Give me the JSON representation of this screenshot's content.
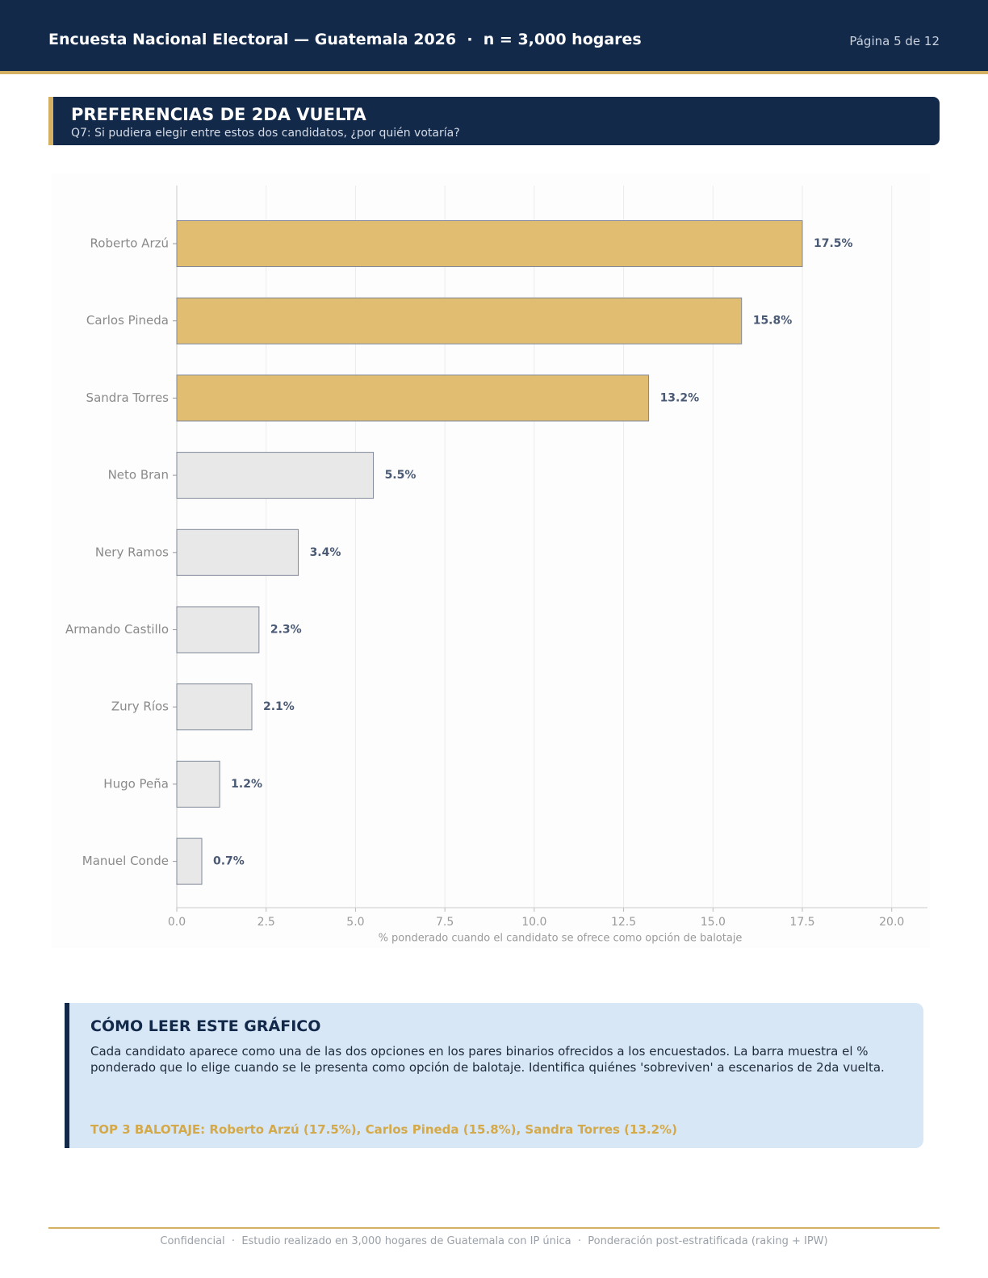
{
  "header": {
    "title": "Encuesta Nacional Electoral — Guatemala 2026  ·  n = 3,000 hogares",
    "page": "Página 5 de 12"
  },
  "section": {
    "title": "PREFERENCIAS DE 2DA VUELTA",
    "subtitle": "Q7: Si pudiera elegir entre estos dos candidatos, ¿por quién votaría?"
  },
  "chart_data": {
    "type": "bar",
    "orientation": "horizontal",
    "categories": [
      "Roberto Arzú",
      "Carlos Pineda",
      "Sandra Torres",
      "Neto Bran",
      "Nery Ramos",
      "Armando Castillo",
      "Zury Ríos",
      "Hugo Peña",
      "Manuel Conde"
    ],
    "values": [
      17.5,
      15.8,
      13.2,
      5.5,
      3.4,
      2.3,
      2.1,
      1.2,
      0.7
    ],
    "value_labels": [
      "17.5%",
      "15.8%",
      "13.2%",
      "5.5%",
      "3.4%",
      "2.3%",
      "2.1%",
      "1.2%",
      "0.7%"
    ],
    "colors": [
      "#e0bd70",
      "#e0bd70",
      "#e0bd70",
      "#e8e8e8",
      "#e8e8e8",
      "#e8e8e8",
      "#e8e8e8",
      "#e8e8e8",
      "#e8e8e8"
    ],
    "x_label": "% ponderado cuando el candidato se ofrece como opción de balotaje",
    "xlim": [
      0,
      21
    ],
    "xticks": [
      {
        "value": 0,
        "label": "0.0"
      },
      2.5,
      {
        "value": 5,
        "label": "5.0"
      },
      7.5,
      {
        "value": 10,
        "label": "10.0"
      },
      12.5,
      {
        "value": 15,
        "label": "15.0"
      },
      17.5,
      {
        "value": 20,
        "label": "20.0"
      }
    ],
    "grid": true
  },
  "note": {
    "title": "CÓMO LEER ESTE GRÁFICO",
    "body": "Cada candidato aparece como una de las dos opciones en los pares binarios ofrecidos a los encuestados. La barra muestra el % ponderado que lo elige cuando se le presenta como opción de balotaje. Identifica quiénes 'sobreviven' a escenarios de 2da vuelta.",
    "highlight": "TOP 3 BALOTAJE: Roberto Arzú (17.5%), Carlos Pineda (15.8%), Sandra Torres (13.2%)"
  },
  "footer": "Confidencial  ·  Estudio realizado en 3,000 hogares de Guatemala con IP única  ·  Ponderación post-estratificada (raking + IPW)"
}
